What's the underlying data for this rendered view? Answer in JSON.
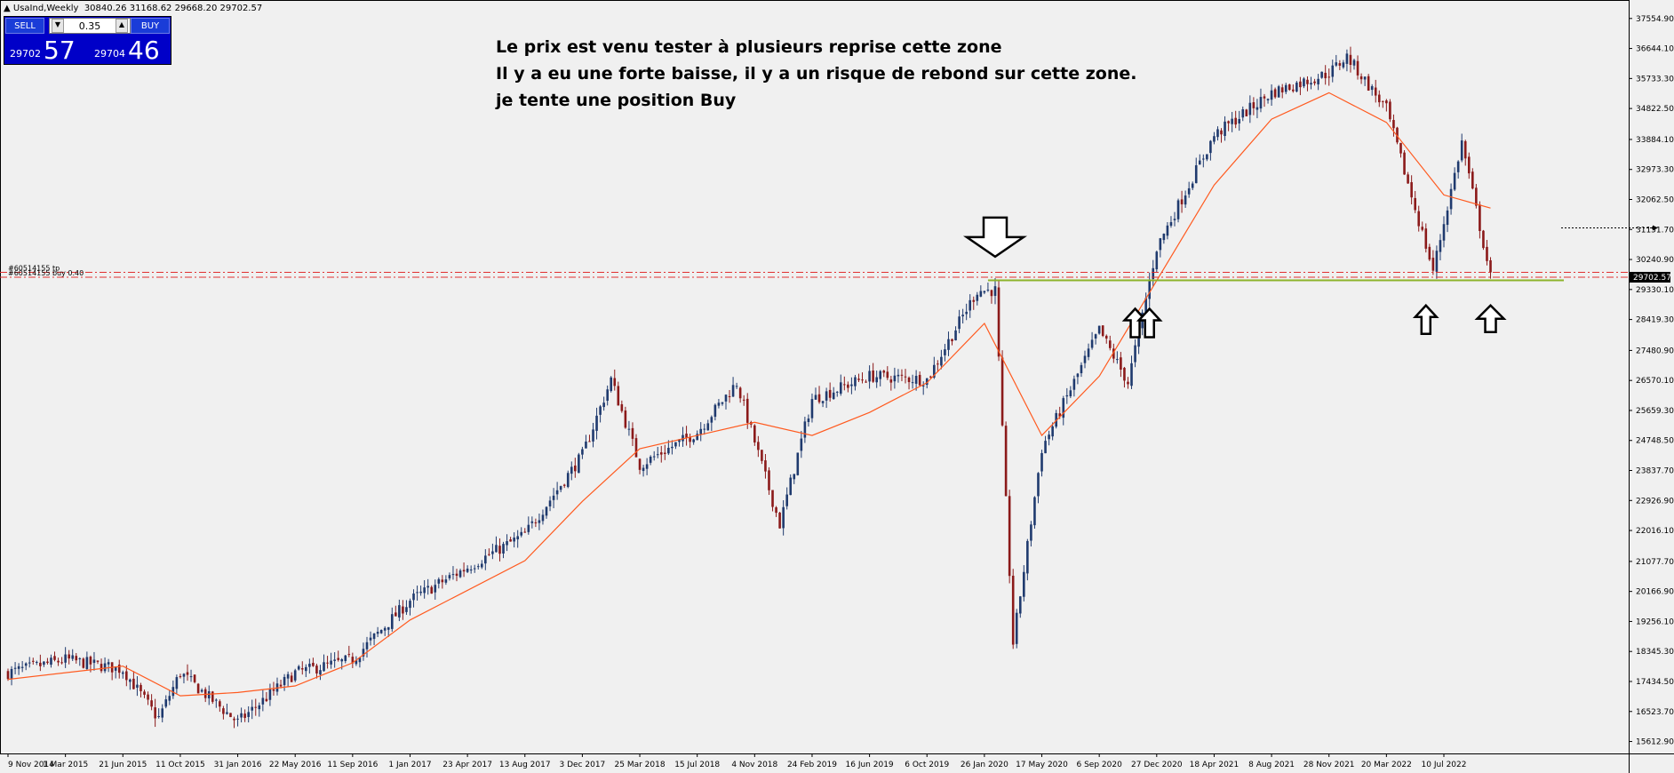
{
  "window": {
    "title": "UsaInd,Weekly",
    "ohlc": "30840.26 31168.62 29668.20 29702.57"
  },
  "trade_panel": {
    "sell_label": "SELL",
    "buy_label": "BUY",
    "lot": "0.35",
    "sell_price_small": "29702",
    "sell_price_big": "57",
    "buy_price_small": "29704",
    "buy_price_big": "46"
  },
  "annotation": {
    "lines": [
      "Le prix est venu tester à plusieurs reprise cette zone",
      "Il y a eu une forte baisse, il y a un risque de rebond sur cette zone.",
      "je tente une position Buy"
    ]
  },
  "order_lines": {
    "tp_label": "#60514155 tp",
    "buy_label": "#60514155 buy 0.40"
  },
  "colors": {
    "background": "#f0f0f0",
    "bull_candle": "#1f3a6e",
    "bear_candle": "#8b1a1a",
    "moving_average": "#ff5a1f",
    "order_line": "#e03030",
    "support_line": "#8db32a",
    "current_price_bg": "#000000"
  },
  "chart_data": {
    "type": "candlestick",
    "symbol": "UsaInd",
    "timeframe": "Weekly",
    "price_axis_ticks": [
      "37554.90",
      "36644.10",
      "35733.30",
      "34822.50",
      "33884.10",
      "32973.30",
      "32062.50",
      "31151.70",
      "30240.90",
      "29330.10",
      "28419.30",
      "27480.90",
      "26570.10",
      "25659.30",
      "24748.50",
      "23837.70",
      "22926.90",
      "22016.10",
      "21077.70",
      "20166.90",
      "19256.10",
      "18345.30",
      "17434.50",
      "16523.70",
      "15612.90"
    ],
    "ylim": [
      15250,
      37900
    ],
    "current_price": "29702.57",
    "date_axis_ticks": [
      "9 Nov 2014",
      "1 Mar 2015",
      "21 Jun 2015",
      "11 Oct 2015",
      "31 Jan 2016",
      "22 May 2016",
      "11 Sep 2016",
      "1 Jan 2017",
      "23 Apr 2017",
      "13 Aug 2017",
      "3 Dec 2017",
      "25 Mar 2018",
      "15 Jul 2018",
      "4 Nov 2018",
      "24 Feb 2019",
      "16 Jun 2019",
      "6 Oct 2019",
      "26 Jan 2020",
      "17 May 2020",
      "6 Sep 2020",
      "27 Dec 2020",
      "18 Apr 2021",
      "8 Aug 2021",
      "28 Nov 2021",
      "20 Mar 2022",
      "10 Jul 2022"
    ],
    "price_path": [
      [
        "9 Nov 2014",
        17700
      ],
      [
        "1 Mar 2015",
        18100
      ],
      [
        "21 Jun 2015",
        17800
      ],
      [
        "29 Aug 2015",
        16300
      ],
      [
        "11 Oct 2015",
        17700
      ],
      [
        "31 Jan 2016",
        16200
      ],
      [
        "22 May 2016",
        17700
      ],
      [
        "11 Sep 2016",
        18100
      ],
      [
        "1 Jan 2017",
        19900
      ],
      [
        "23 Apr 2017",
        20900
      ],
      [
        "13 Aug 2017",
        21900
      ],
      [
        "3 Dec 2017",
        24300
      ],
      [
        "28 Jan 2018",
        26600
      ],
      [
        "25 Mar 2018",
        24000
      ],
      [
        "15 Jul 2018",
        25000
      ],
      [
        "30 Sep 2018",
        26500
      ],
      [
        "23 Dec 2018",
        22200
      ],
      [
        "24 Feb 2019",
        26000
      ],
      [
        "16 Jun 2019",
        26700
      ],
      [
        "6 Oct 2019",
        26600
      ],
      [
        "12 Jan 2020",
        29300
      ],
      [
        "16 Feb 2020",
        29300
      ],
      [
        "22 Mar 2020",
        18600
      ],
      [
        "17 May 2020",
        24500
      ],
      [
        "6 Sep 2020",
        28100
      ],
      [
        "1 Nov 2020",
        26500
      ],
      [
        "27 Dec 2020",
        30600
      ],
      [
        "18 Apr 2021",
        34000
      ],
      [
        "8 Aug 2021",
        35300
      ],
      [
        "28 Nov 2021",
        35900
      ],
      [
        "2 Jan 2022",
        36400
      ],
      [
        "20 Mar 2022",
        34800
      ],
      [
        "19 Jun 2022",
        29900
      ],
      [
        "14 Aug 2022",
        33800
      ],
      [
        "9 Oct 2022",
        29700
      ]
    ],
    "moving_average": [
      [
        "9 Nov 2014",
        17500
      ],
      [
        "21 Jun 2015",
        17900
      ],
      [
        "11 Oct 2015",
        17000
      ],
      [
        "31 Jan 2016",
        17100
      ],
      [
        "22 May 2016",
        17300
      ],
      [
        "11 Sep 2016",
        18000
      ],
      [
        "1 Jan 2017",
        19300
      ],
      [
        "13 Aug 2017",
        21100
      ],
      [
        "3 Dec 2017",
        22900
      ],
      [
        "25 Mar 2018",
        24500
      ],
      [
        "15 Jul 2018",
        24900
      ],
      [
        "4 Nov 2018",
        25300
      ],
      [
        "24 Feb 2019",
        24900
      ],
      [
        "16 Jun 2019",
        25600
      ],
      [
        "6 Oct 2019",
        26500
      ],
      [
        "26 Jan 2020",
        28300
      ],
      [
        "17 May 2020",
        24900
      ],
      [
        "6 Sep 2020",
        26700
      ],
      [
        "27 Dec 2020",
        29600
      ],
      [
        "18 Apr 2021",
        32500
      ],
      [
        "8 Aug 2021",
        34500
      ],
      [
        "28 Nov 2021",
        35300
      ],
      [
        "20 Mar 2022",
        34400
      ],
      [
        "10 Jul 2022",
        32200
      ],
      [
        "9 Oct 2022",
        31800
      ]
    ],
    "horizontal_lines": [
      {
        "label": "#60514155 tp",
        "price": 29850,
        "style": "dash-dot",
        "color": "#e03030"
      },
      {
        "label": "#60514155 buy 0.40",
        "price": 29702.57,
        "style": "dash-dot",
        "color": "#e03030"
      },
      {
        "label": "",
        "price": 29610,
        "style": "solid",
        "color": "#8db32a"
      }
    ],
    "arrows": [
      {
        "direction": "down",
        "date": "16 Feb 2020",
        "price": 30300
      },
      {
        "direction": "up",
        "date": "15 Nov 2020",
        "price": 28800
      },
      {
        "direction": "up",
        "date": "13 Dec 2020",
        "price": 28800
      },
      {
        "direction": "up",
        "date": "5 Jun 2022",
        "price": 28900
      },
      {
        "direction": "up",
        "date": "9 Oct 2022",
        "price": 28900
      }
    ]
  }
}
